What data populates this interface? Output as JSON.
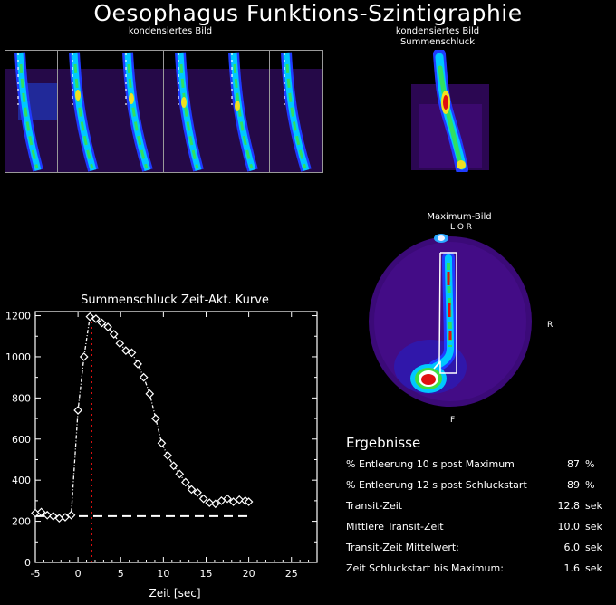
{
  "title": "Oesophagus Funktions-Szintigraphie",
  "condensed_label": "kondensiertes Bild",
  "sum_label_line1": "kondensiertes Bild",
  "sum_label_line2": "Summenschluck",
  "max_label": "Maximum-Bild",
  "marker_top": "L O R",
  "marker_right": "R",
  "marker_bottom": "F",
  "results": {
    "heading": "Ergebnisse",
    "rows": [
      {
        "label": "% Entleerung 10 s post Maximum",
        "value": "87",
        "unit": "%"
      },
      {
        "label": "% Entleerung 12 s post Schluckstart",
        "value": "89",
        "unit": "%"
      },
      {
        "label": "Transit-Zeit",
        "value": "12.8",
        "unit": "sek"
      },
      {
        "label": "Mittlere Transit-Zeit",
        "value": "10.0",
        "unit": "sek"
      },
      {
        "label": "Transit-Zeit Mittelwert:",
        "value": "6.0",
        "unit": "sek"
      },
      {
        "label": "Zeit Schluckstart bis Maximum:",
        "value": "1.6",
        "unit": "sek"
      }
    ]
  },
  "chart_data": {
    "type": "scatter",
    "title": "Summenschluck Zeit-Akt. Kurve",
    "xlabel": "Zeit [sec]",
    "ylabel": "",
    "xlim": [
      -5,
      28
    ],
    "ylim": [
      0,
      1220
    ],
    "xticks": [
      -5,
      0,
      5,
      10,
      15,
      20,
      25
    ],
    "yticks": [
      0,
      200,
      400,
      600,
      800,
      1000,
      1200
    ],
    "series": [
      {
        "values": [
          [
            -5,
            240
          ],
          [
            -4.3,
            245
          ],
          [
            -3.6,
            230
          ],
          [
            -2.9,
            225
          ],
          [
            -2.2,
            215
          ],
          [
            -1.5,
            220
          ],
          [
            -0.8,
            230
          ],
          [
            0.0,
            740
          ],
          [
            0.7,
            1000
          ],
          [
            1.4,
            1195
          ],
          [
            2.1,
            1185
          ],
          [
            2.8,
            1165
          ],
          [
            3.5,
            1145
          ],
          [
            4.2,
            1110
          ],
          [
            4.9,
            1065
          ],
          [
            5.6,
            1030
          ],
          [
            6.3,
            1020
          ],
          [
            7.0,
            965
          ],
          [
            7.7,
            900
          ],
          [
            8.4,
            820
          ],
          [
            9.1,
            700
          ],
          [
            9.8,
            580
          ],
          [
            10.5,
            520
          ],
          [
            11.2,
            470
          ],
          [
            11.9,
            430
          ],
          [
            12.6,
            390
          ],
          [
            13.3,
            355
          ],
          [
            14.0,
            340
          ],
          [
            14.7,
            310
          ],
          [
            15.4,
            290
          ],
          [
            16.1,
            285
          ],
          [
            16.8,
            300
          ],
          [
            17.5,
            310
          ],
          [
            18.2,
            295
          ],
          [
            18.9,
            305
          ],
          [
            19.6,
            300
          ],
          [
            20.0,
            295
          ]
        ]
      }
    ],
    "baseline": {
      "x": [
        -5,
        20
      ],
      "y": 225
    },
    "marker_line_x": 1.6
  },
  "colors": {
    "marker_line": "#e01010",
    "roi": "#ffffff",
    "background": "#000000"
  }
}
